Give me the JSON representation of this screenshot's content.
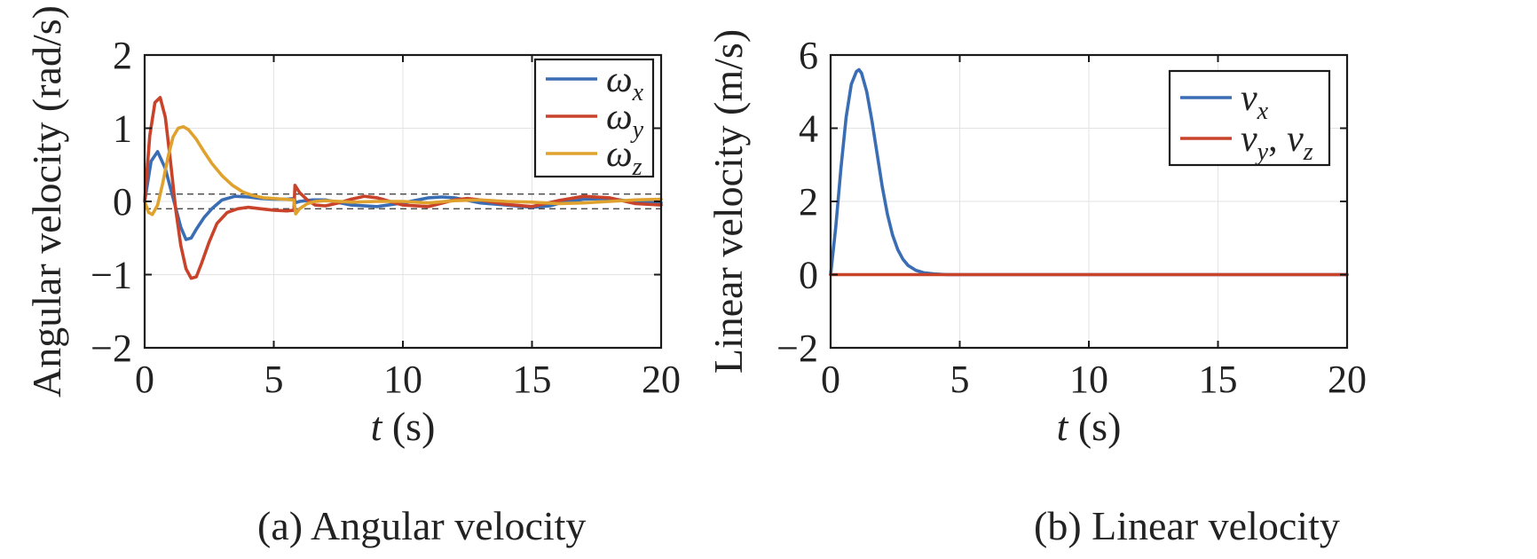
{
  "chart_data": [
    {
      "type": "line",
      "caption": "(a) Angular velocity",
      "xlabel_var": "t",
      "xlabel_unit": " (s)",
      "ylabel": "Angular velocity (rad/s)",
      "xlim": [
        0,
        20
      ],
      "ylim": [
        -2,
        2
      ],
      "xticks": [
        "0",
        "5",
        "10",
        "15",
        "20"
      ],
      "yticks": [
        "−2",
        "−1",
        "0",
        "1",
        "2"
      ],
      "grid": true,
      "legend_position": "top-right",
      "reference_lines": [
        0.1,
        -0.1
      ],
      "series": [
        {
          "name": "ω",
          "sub": "x",
          "color": "#3a6db4",
          "x": [
            0,
            0.25,
            0.5,
            0.8,
            1.1,
            1.4,
            1.6,
            1.8,
            2.0,
            2.3,
            2.6,
            3.0,
            3.5,
            4.0,
            4.5,
            5.0,
            5.5,
            5.8,
            5.82,
            6.0,
            6.5,
            7.0,
            8.0,
            9.0,
            10.0,
            11.0,
            11.5,
            12.0,
            13.0,
            14.0,
            15.0,
            15.7,
            16.0,
            17.0,
            18.0,
            19.0,
            20.0
          ],
          "y": [
            0,
            0.55,
            0.68,
            0.45,
            0.05,
            -0.35,
            -0.52,
            -0.5,
            -0.38,
            -0.22,
            -0.1,
            0.02,
            0.07,
            0.06,
            0.04,
            0.03,
            0.03,
            0.04,
            -0.02,
            0.0,
            0.02,
            0.02,
            -0.05,
            -0.07,
            -0.02,
            0.05,
            0.06,
            0.05,
            -0.02,
            -0.05,
            -0.08,
            -0.06,
            -0.03,
            0.03,
            0.04,
            -0.01,
            -0.02
          ]
        },
        {
          "name": "ω",
          "sub": "y",
          "color": "#c9432b",
          "x": [
            0,
            0.2,
            0.4,
            0.6,
            0.8,
            1.0,
            1.2,
            1.4,
            1.6,
            1.8,
            2.0,
            2.2,
            2.5,
            2.8,
            3.2,
            3.6,
            4.0,
            4.5,
            5.0,
            5.5,
            5.78,
            5.82,
            6.0,
            6.3,
            6.6,
            7.0,
            7.5,
            8.0,
            8.5,
            9.0,
            10.0,
            11.0,
            12.0,
            12.5,
            13.0,
            14.0,
            15.0,
            16.0,
            17.0,
            18.0,
            19.0,
            20.0
          ],
          "y": [
            0,
            0.9,
            1.35,
            1.42,
            1.15,
            0.55,
            -0.1,
            -0.6,
            -0.92,
            -1.05,
            -1.03,
            -0.85,
            -0.55,
            -0.3,
            -0.15,
            -0.1,
            -0.08,
            -0.1,
            -0.12,
            -0.13,
            -0.12,
            0.22,
            0.12,
            0.02,
            -0.05,
            -0.06,
            -0.02,
            0.03,
            0.07,
            0.05,
            -0.05,
            -0.07,
            0.02,
            0.04,
            0.02,
            -0.04,
            -0.07,
            0.01,
            0.07,
            0.05,
            -0.03,
            -0.05
          ]
        },
        {
          "name": "ω",
          "sub": "z",
          "color": "#e0a22e",
          "x": [
            0,
            0.15,
            0.3,
            0.5,
            0.7,
            0.9,
            1.1,
            1.3,
            1.5,
            1.7,
            2.0,
            2.3,
            2.6,
            3.0,
            3.4,
            3.8,
            4.2,
            4.6,
            5.0,
            5.4,
            5.78,
            5.85,
            6.0,
            6.3,
            6.6,
            7.0,
            8.0,
            9.0,
            10.0,
            11.0,
            12.0,
            13.0,
            14.0,
            15.0,
            16.0,
            17.0,
            18.0,
            19.0,
            20.0
          ],
          "y": [
            0,
            -0.15,
            -0.18,
            -0.05,
            0.25,
            0.6,
            0.88,
            1.0,
            1.02,
            0.98,
            0.85,
            0.68,
            0.52,
            0.35,
            0.22,
            0.13,
            0.08,
            0.05,
            0.04,
            0.03,
            0.02,
            -0.17,
            -0.1,
            -0.03,
            0.0,
            0.01,
            -0.01,
            0.0,
            0.0,
            -0.02,
            0.01,
            0.02,
            0.0,
            -0.01,
            -0.03,
            -0.02,
            0.0,
            0.02,
            0.03
          ]
        }
      ]
    },
    {
      "type": "line",
      "caption": "(b) Linear velocity",
      "xlabel_var": "t",
      "xlabel_unit": " (s)",
      "ylabel": "Linear velocity (m/s)",
      "xlim": [
        0,
        20
      ],
      "ylim": [
        -2,
        6
      ],
      "xticks": [
        "0",
        "5",
        "10",
        "15",
        "20"
      ],
      "yticks": [
        "−2",
        "0",
        "2",
        "4",
        "6"
      ],
      "grid": true,
      "legend_position": "top-right",
      "series": [
        {
          "name": "v",
          "sub": "x",
          "color": "#3a6db4",
          "x": [
            0,
            0.2,
            0.4,
            0.6,
            0.8,
            1.0,
            1.1,
            1.2,
            1.4,
            1.6,
            1.8,
            2.0,
            2.2,
            2.4,
            2.6,
            2.8,
            3.0,
            3.3,
            3.6,
            4.0,
            4.5,
            5.0,
            6.0,
            10.0,
            15.0,
            20.0
          ],
          "y": [
            0,
            1.3,
            2.9,
            4.3,
            5.2,
            5.55,
            5.6,
            5.5,
            5.0,
            4.2,
            3.3,
            2.4,
            1.65,
            1.08,
            0.68,
            0.42,
            0.25,
            0.12,
            0.05,
            0.02,
            0.0,
            0.0,
            0.0,
            0.0,
            0.0,
            0.0
          ]
        },
        {
          "name": "v",
          "sub": "y",
          "name2": "v",
          "sub2": "z",
          "color": "#c9432b",
          "x": [
            0,
            20
          ],
          "y": [
            0,
            0
          ]
        }
      ]
    }
  ]
}
